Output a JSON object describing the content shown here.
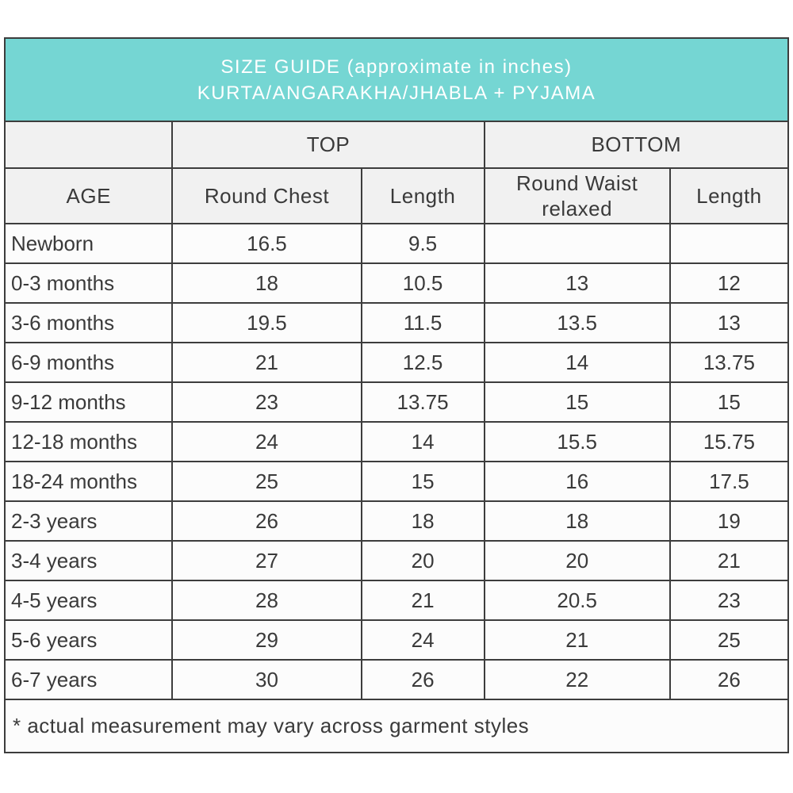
{
  "title": {
    "line1": "SIZE GUIDE (approximate in inches)",
    "line2": "KURTA/ANGARAKHA/JHABLA + PYJAMA"
  },
  "colors": {
    "teal_band": "#75d6d3",
    "border": "#3d3d3d",
    "subheader_bg": "#f1f1f1",
    "row_bg": "#fcfcfc",
    "text": "#3a3a3a",
    "title_text": "#ffffff"
  },
  "chart_data": {
    "type": "table",
    "title": "SIZE GUIDE (approximate in inches) KURTA/ANGARAKHA/JHABLA + PYJAMA",
    "group_headers": {
      "corner": "",
      "top": "TOP",
      "bottom": "BOTTOM"
    },
    "columns": [
      "AGE",
      "Round Chest",
      "Length",
      "Round Waist relaxed",
      "Length"
    ],
    "rows": [
      [
        "Newborn",
        "16.5",
        "9.5",
        "",
        ""
      ],
      [
        "0-3 months",
        "18",
        "10.5",
        "13",
        "12"
      ],
      [
        "3-6 months",
        "19.5",
        "11.5",
        "13.5",
        "13"
      ],
      [
        "6-9 months",
        "21",
        "12.5",
        "14",
        "13.75"
      ],
      [
        "9-12 months",
        "23",
        "13.75",
        "15",
        "15"
      ],
      [
        "12-18 months",
        "24",
        "14",
        "15.5",
        "15.75"
      ],
      [
        "18-24 months",
        "25",
        "15",
        "16",
        "17.5"
      ],
      [
        "2-3 years",
        "26",
        "18",
        "18",
        "19"
      ],
      [
        "3-4 years",
        "27",
        "20",
        "20",
        "21"
      ],
      [
        "4-5 years",
        "28",
        "21",
        "20.5",
        "23"
      ],
      [
        "5-6 years",
        "29",
        "24",
        "21",
        "25"
      ],
      [
        "6-7 years",
        "30",
        "26",
        "22",
        "26"
      ]
    ],
    "footnote": "* actual measurement may vary across garment styles"
  }
}
